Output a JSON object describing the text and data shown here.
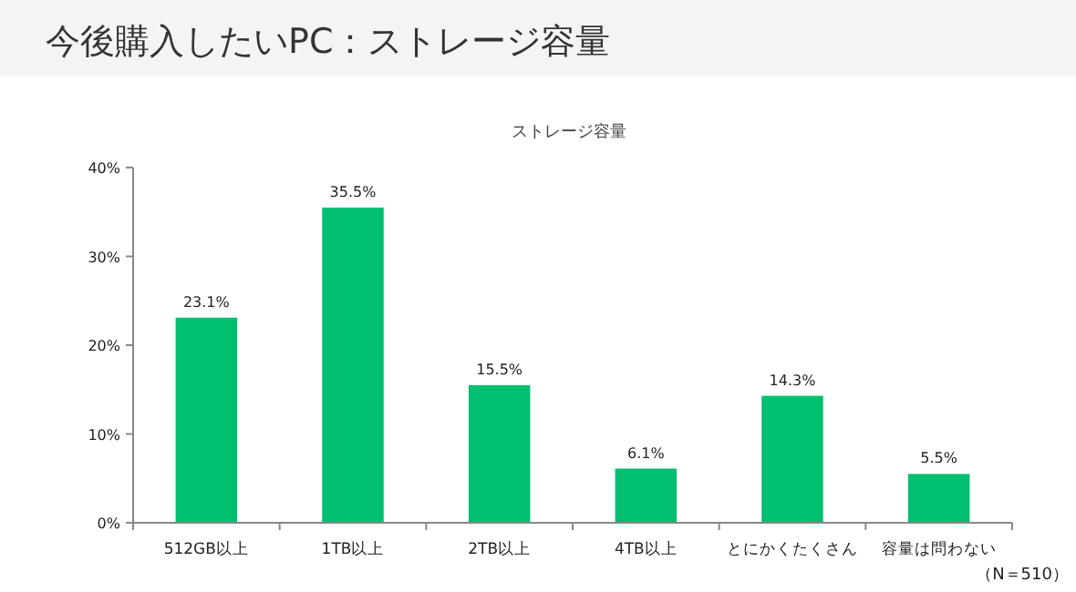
{
  "chart_data": {
    "type": "bar",
    "title": "今後購入したいPC：ストレージ容量",
    "subtitle": "ストレージ容量",
    "categories": [
      "512GB以上",
      "1TB以上",
      "2TB以上",
      "4TB以上",
      "とにかくたくさん",
      "容量は問わない"
    ],
    "values": [
      23.1,
      35.5,
      15.5,
      6.1,
      14.3,
      5.5
    ],
    "value_labels": [
      "23.1%",
      "35.5%",
      "15.5%",
      "6.1%",
      "14.3%",
      "5.5%"
    ],
    "color": "#00bf6f",
    "ylim": [
      0,
      40
    ],
    "yticks": [
      {
        "value": 0,
        "label": "0%"
      },
      {
        "value": 10,
        "label": "10%"
      },
      {
        "value": 20,
        "label": "20%"
      },
      {
        "value": 30,
        "label": "30%"
      },
      {
        "value": 40,
        "label": "40%"
      }
    ],
    "grid": false,
    "annotations": [
      "（N＝510）"
    ]
  }
}
